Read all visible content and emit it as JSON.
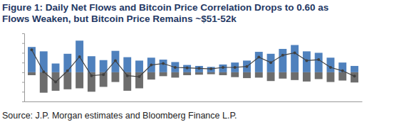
{
  "chart_data": {
    "type": "bar",
    "title": "Figure 1: Daily Net Flows and Bitcoin Price Correlation Drops to 0.60 as Flows Weaken, but Bitcoin Price Remains ~$51-52k",
    "source": "Source: J.P. Morgan estimates and Bloomberg Finance L.P.",
    "categories": [
      null,
      null,
      null,
      null,
      null,
      null,
      null,
      null,
      null,
      null,
      null,
      null,
      null,
      null,
      null,
      null,
      null,
      null,
      null,
      null,
      null,
      null,
      null,
      null,
      null,
      null,
      null,
      null
    ],
    "stacked": true,
    "grid": false,
    "tick_labels": false,
    "ylim": [
      -600,
      800
    ],
    "yticks": [
      -600,
      -400,
      -200,
      0,
      200,
      400,
      600,
      800
    ],
    "series": [
      {
        "type": "bar",
        "color": "#4f81bd",
        "values": [
          520,
          430,
          180,
          380,
          650,
          330,
          250,
          440,
          310,
          240,
          300,
          260,
          210,
          150,
          130,
          110,
          160,
          200,
          240,
          420,
          380,
          480,
          560,
          430,
          400,
          300,
          200,
          130
        ]
      },
      {
        "type": "bar",
        "color": "#6d6d6d",
        "values": [
          -60,
          -420,
          -380,
          -350,
          -330,
          -400,
          -300,
          -200,
          -380,
          -330,
          -150,
          -80,
          -110,
          -60,
          -50,
          -40,
          -60,
          -100,
          -120,
          -110,
          -180,
          -130,
          -160,
          -190,
          -140,
          -200,
          -170,
          -210
        ]
      },
      {
        "type": "line",
        "color": "#404040",
        "marker": "circle",
        "line_style": "solid",
        "values": [
          460,
          10,
          -200,
          30,
          320,
          -70,
          -50,
          240,
          -70,
          -90,
          150,
          180,
          100,
          90,
          80,
          70,
          100,
          100,
          120,
          310,
          200,
          350,
          400,
          240,
          260,
          100,
          30,
          -80
        ]
      }
    ]
  }
}
